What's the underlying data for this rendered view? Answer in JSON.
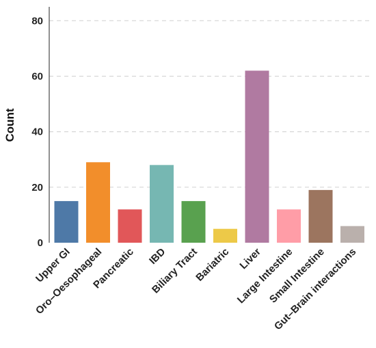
{
  "chart_data": {
    "type": "bar",
    "title": "",
    "xlabel": "",
    "ylabel": "Count",
    "ylim": [
      0,
      85
    ],
    "yticks": [
      0,
      20,
      40,
      60,
      80
    ],
    "grid": true,
    "categories": [
      "Upper GI",
      "Oro–Oesophageal",
      "Pancreatic",
      "IBD",
      "Biliary Tract",
      "Bariatric",
      "Liver",
      "Large Intestine",
      "Small Intestine",
      "Gut–Brain interactions"
    ],
    "values": [
      15,
      29,
      12,
      28,
      15,
      5,
      62,
      12,
      19,
      6
    ],
    "colors": [
      "#4e79a7",
      "#f28e2b",
      "#e15759",
      "#76b7b2",
      "#59a14f",
      "#edc948",
      "#b07aa1",
      "#ff9da7",
      "#9c755f",
      "#bab0ac"
    ]
  }
}
